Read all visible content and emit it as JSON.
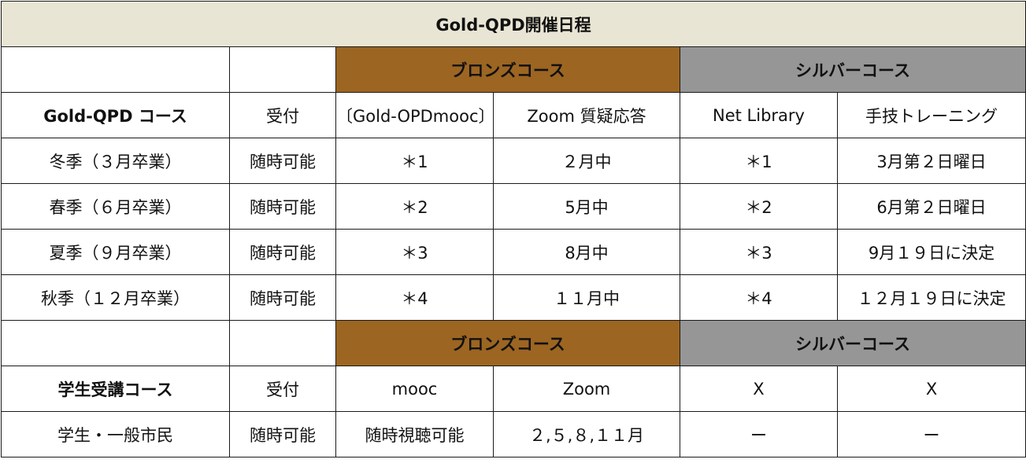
{
  "title": "Gold-QPD開催日程",
  "header_bronze": "ブロンズコース",
  "header_silver": "シルバーコース",
  "gold": {
    "course_label": "Gold-QPD コース",
    "reception_label": "受付",
    "bronze_col1": "〔Gold-OPDmooc〕",
    "bronze_col2": "Zoom 質疑応答",
    "silver_col1": "Net Library",
    "silver_col2": "手技トレーニング",
    "rows": [
      {
        "season": "冬季（３月卒業）",
        "reception": "随時可能",
        "mooc": "＊1",
        "zoom": "２月中",
        "library": "＊1",
        "training": "3月第２日曜日"
      },
      {
        "season": "春季（６月卒業）",
        "reception": "随時可能",
        "mooc": "＊2",
        "zoom": "5月中",
        "library": "＊2",
        "training": "6月第２日曜日"
      },
      {
        "season": "夏季（９月卒業）",
        "reception": "随時可能",
        "mooc": "＊3",
        "zoom": "8月中",
        "library": "＊3",
        "training": "9月１９日に決定"
      },
      {
        "season": "秋季（１２月卒業）",
        "reception": "随時可能",
        "mooc": "＊4",
        "zoom": "１１月中",
        "library": "＊4",
        "training": "１２月１９日に決定"
      }
    ]
  },
  "student": {
    "course_label": "学生受講コース",
    "reception_label": "受付",
    "bronze_col1": "mooc",
    "bronze_col2": "Zoom",
    "silver_col1": "X",
    "silver_col2": "X",
    "row": {
      "category": "学生・一般市民",
      "reception": "随時可能",
      "mooc": "随時視聴可能",
      "zoom": "２,５,８,１１月",
      "library": "ー",
      "training": "ー"
    }
  }
}
